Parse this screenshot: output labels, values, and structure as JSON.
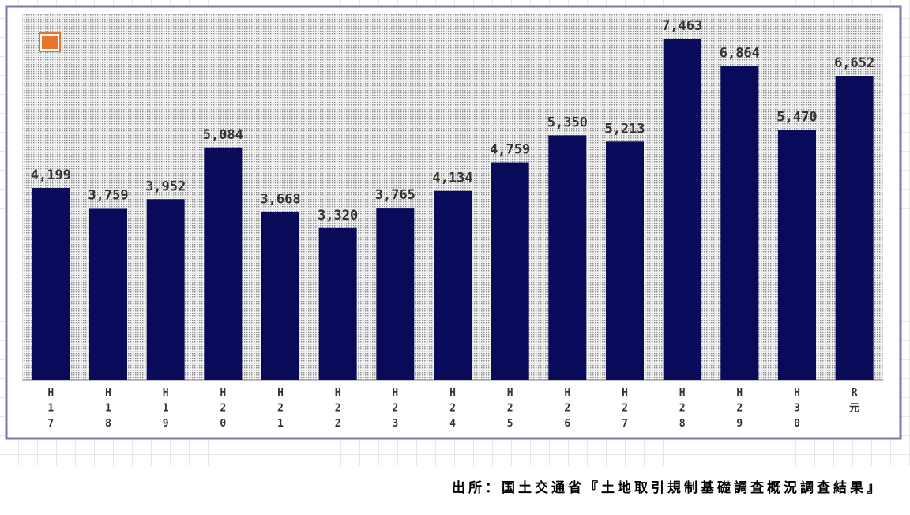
{
  "chart_data": {
    "type": "bar",
    "categories": [
      "H17",
      "H18",
      "H19",
      "H20",
      "H21",
      "H22",
      "H23",
      "H24",
      "H25",
      "H26",
      "H27",
      "H28",
      "H29",
      "H30",
      "R元"
    ],
    "values": [
      4199,
      3759,
      3952,
      5084,
      3668,
      3320,
      3765,
      4134,
      4759,
      5350,
      5213,
      7463,
      6864,
      5470,
      6652
    ],
    "value_labels": [
      "4,199",
      "3,759",
      "3,952",
      "5,084",
      "3,668",
      "3,320",
      "3,765",
      "4,134",
      "4,759",
      "5,350",
      "5,213",
      "7,463",
      "6,864",
      "5,470",
      "6,652"
    ],
    "color": "#0a0a5a",
    "ylim": [
      0,
      8000
    ],
    "source": "出所：国土交通省『土地取引規制基礎調査概況調査結果』"
  }
}
